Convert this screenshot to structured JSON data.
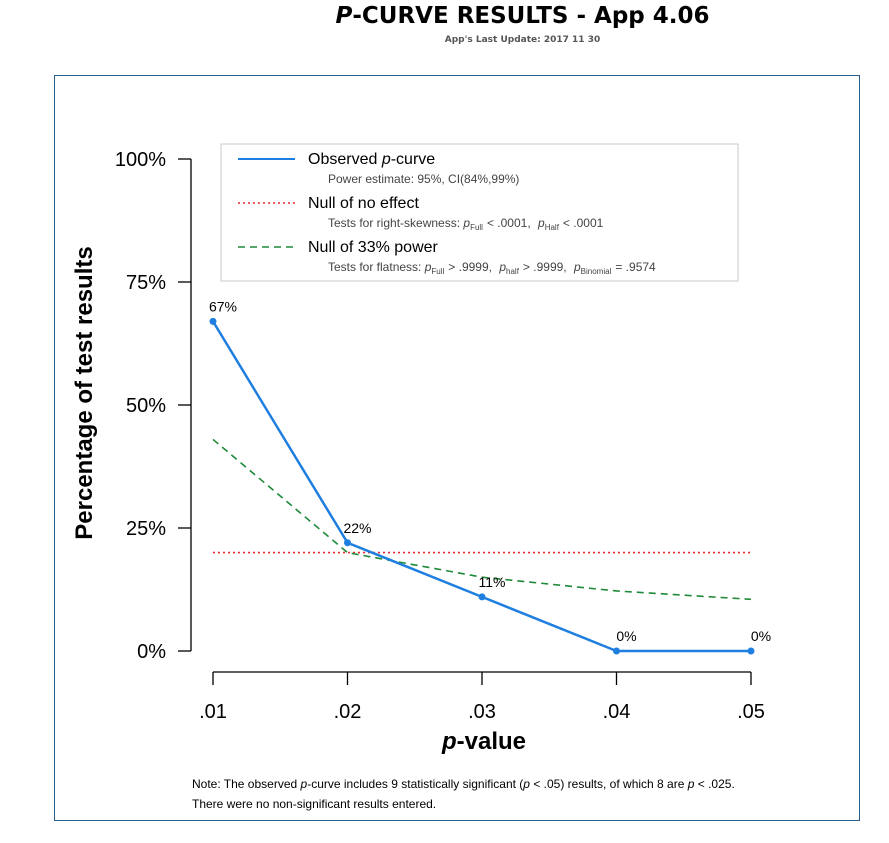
{
  "header": {
    "title": "P-CURVE RESULTS - App 4.06",
    "title_italic": "P",
    "title_rest": "-CURVE RESULTS - App 4.06",
    "subtitle": "App's Last Update: 2017 11 30"
  },
  "legend": {
    "observed": {
      "label_italic": "p",
      "label": "Observed p-curve",
      "label_prefix": "Observed ",
      "label_suffix": "-curve",
      "sub": "Power estimate: 95%, CI(84%,99%)"
    },
    "null_effect": {
      "label": "Null of no effect",
      "sub_prefix": "Tests for right-skewness: ",
      "p_full_label": "Full",
      "p_full_value": "< .0001",
      "p_half_label": "Half",
      "p_half_value": "< .0001"
    },
    "null_33": {
      "label": "Null of 33% power",
      "sub_prefix": "Tests for flatness: ",
      "p_full_label": "Full",
      "p_full_value": "> .9999",
      "p_half_label": "half",
      "p_half_value": "> .9999",
      "p_binomial_label": "Binomial",
      "p_binomial_value": "= .9574"
    }
  },
  "chart_data": {
    "type": "line",
    "categories": [
      ".01",
      ".02",
      ".03",
      ".04",
      ".05"
    ],
    "x": [
      0.01,
      0.02,
      0.03,
      0.04,
      0.05
    ],
    "series": [
      {
        "name": "Observed p-curve",
        "values": [
          67,
          22,
          11,
          0,
          0
        ],
        "labels": [
          "67%",
          "22%",
          "11%",
          "0%",
          "0%"
        ],
        "color": "#1e7fe0",
        "style": "solid"
      },
      {
        "name": "Null of no effect",
        "values": [
          20,
          20,
          20,
          20,
          20
        ],
        "color": "#e8262b",
        "style": "dotted"
      },
      {
        "name": "Null of 33% power",
        "values": [
          43,
          20,
          15,
          12.2,
          10.5
        ],
        "color": "#1f8a3a",
        "style": "dashed"
      }
    ],
    "xlabel": "p-value",
    "xlabel_italic": "p",
    "xlabel_rest": "-value",
    "ylabel": "Percentage of test results",
    "yticks": [
      "0%",
      "25%",
      "50%",
      "75%",
      "100%"
    ],
    "ytick_values": [
      0,
      25,
      50,
      75,
      100
    ],
    "ylim": [
      0,
      100
    ],
    "legend_position": "top"
  },
  "note": {
    "line1_a": "Note: The observed ",
    "line1_b": "p",
    "line1_c": "-curve includes 9 statistically significant (",
    "line1_d": "p",
    "line1_e": " < .05) results, of which 8 are ",
    "line1_f": "p",
    "line1_g": " < .025.",
    "line2": "There were no non-significant results entered."
  }
}
